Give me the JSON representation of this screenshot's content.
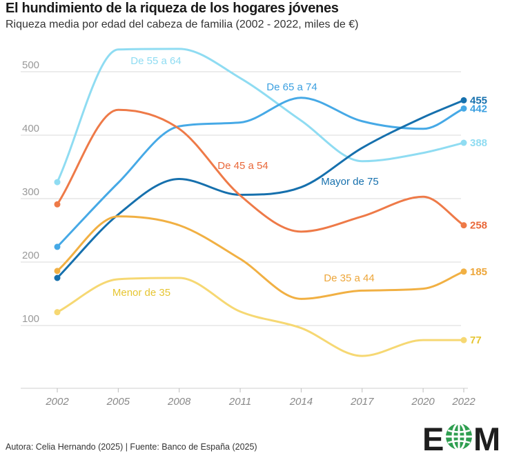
{
  "header": {
    "title": "El hundimiento de la riqueza de los hogares jóvenes",
    "subtitle": "Riqueza media por edad del cabeza de familia (2002 - 2022, miles de €)"
  },
  "footer": {
    "credit": "Autora: Celia Hernando (2025) | Fuente: Banco de España (2025)"
  },
  "logo": {
    "text_left": "E",
    "text_right": "M",
    "icon": "globe-icon"
  },
  "chart_data": {
    "type": "line",
    "title": "El hundimiento de la riqueza de los hogares jóvenes",
    "subtitle": "Riqueza media por edad del cabeza de familia (2002 - 2022, miles de €)",
    "xlabel": "",
    "ylabel": "",
    "x": [
      2002,
      2005,
      2008,
      2011,
      2014,
      2017,
      2020,
      2022
    ],
    "x_tick_labels": [
      "2002",
      "2005",
      "2008",
      "2011",
      "2014",
      "2017",
      "2020",
      "2022"
    ],
    "ylim": [
      0,
      560
    ],
    "y_ticks": [
      100,
      200,
      300,
      400,
      500
    ],
    "grid": true,
    "series": [
      {
        "name": "De 55 a 64",
        "color": "#8fdcf2",
        "values": [
          326,
          535,
          536,
          490,
          423,
          359,
          372,
          388
        ],
        "end_label": "388"
      },
      {
        "name": "De 65 a 74",
        "color": "#46a9e6",
        "values": [
          224,
          325,
          414,
          420,
          459,
          422,
          410,
          442
        ],
        "end_label": "442"
      },
      {
        "name": "Mayor de 75",
        "color": "#1670ad",
        "values": [
          175,
          275,
          331,
          306,
          318,
          380,
          428,
          455
        ],
        "end_label": "455"
      },
      {
        "name": "De 45 a 54",
        "color": "#ee7a48",
        "values": [
          291,
          440,
          410,
          305,
          248,
          272,
          303,
          258
        ],
        "end_label": "258"
      },
      {
        "name": "De 35 a 44",
        "color": "#f1b043",
        "values": [
          186,
          272,
          258,
          205,
          142,
          155,
          158,
          185
        ],
        "end_label": "185"
      },
      {
        "name": "Menor de 35",
        "color": "#f6d873",
        "values": [
          121,
          173,
          175,
          122,
          96,
          52,
          77,
          77
        ],
        "end_label": "77"
      }
    ],
    "label_colors": {
      "De 55 a 64": "#8fdcf2",
      "De 65 a 74": "#3a9fe0",
      "Mayor de 75": "#1670ad",
      "De 45 a 54": "#e9683a",
      "De 35 a 44": "#eda63a",
      "Menor de 35": "#e6c531"
    }
  }
}
